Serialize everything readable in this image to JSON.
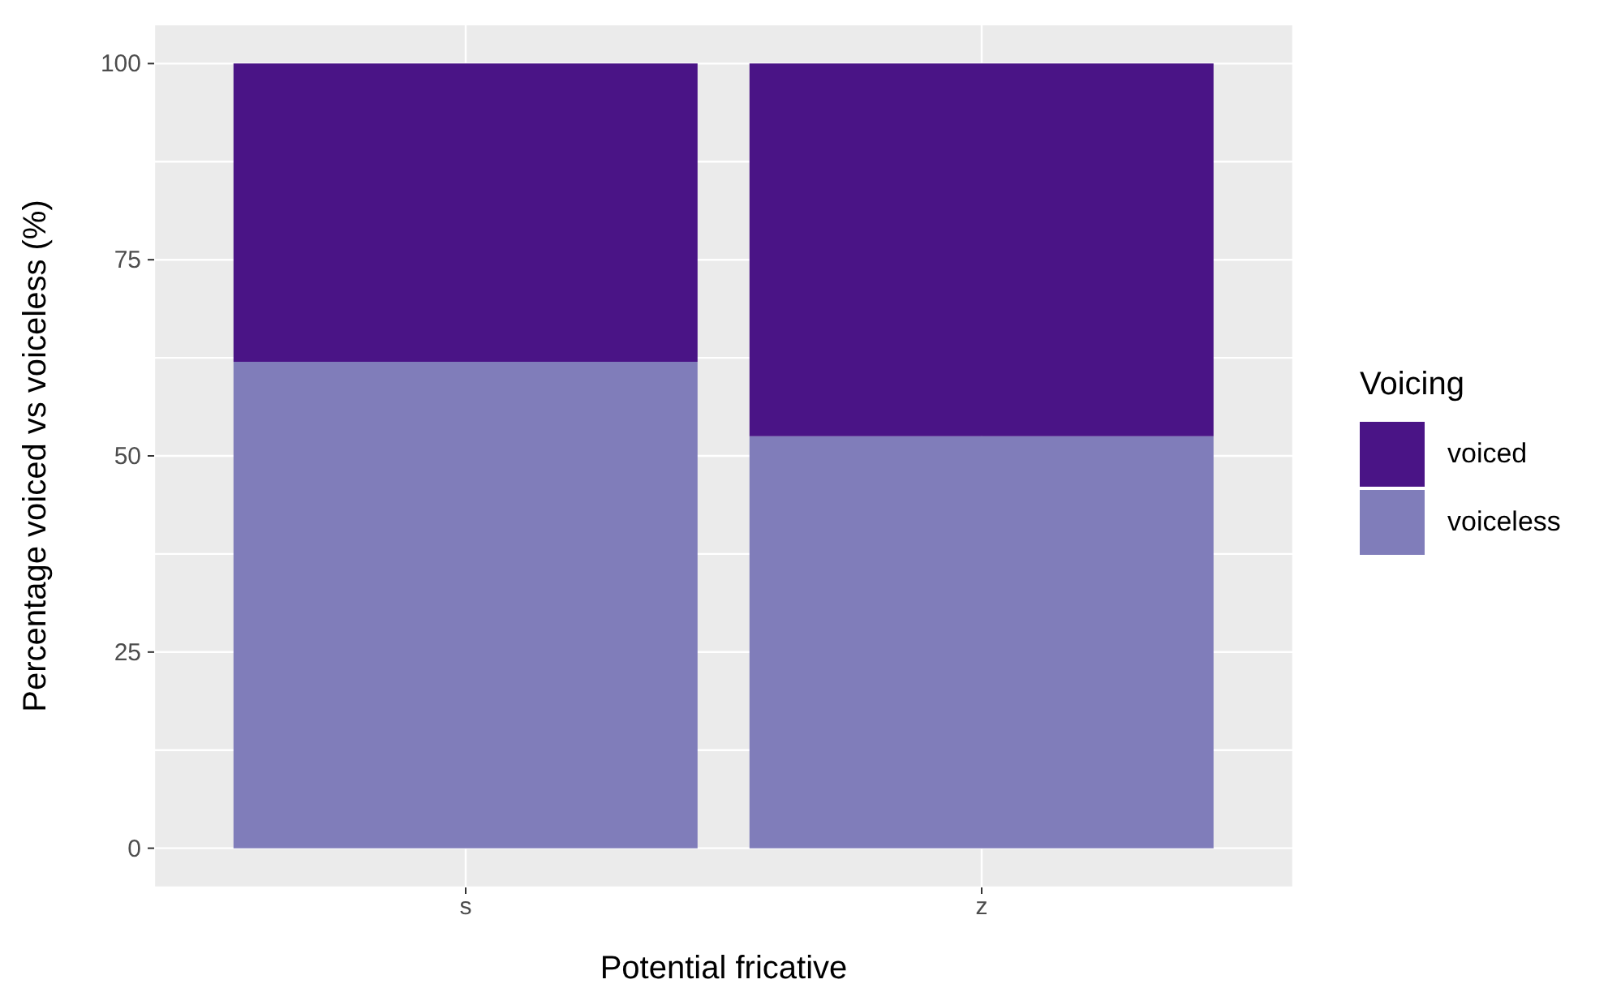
{
  "chart_data": {
    "type": "bar",
    "xlabel": "Potential fricative",
    "ylabel": "Percentage voiced vs voiceless (%)",
    "legend_title": "Voicing",
    "categories": [
      "s",
      "z"
    ],
    "series": [
      {
        "name": "voiceless",
        "color": "#807dba",
        "values": [
          62,
          52.5
        ]
      },
      {
        "name": "voiced",
        "color": "#4a1486",
        "values": [
          38,
          47.5
        ]
      }
    ],
    "stacked": true,
    "ylim": [
      -5,
      105
    ],
    "yticks": [
      0,
      {
        "value": 12.5,
        "label": null
      },
      25,
      {
        "value": 37.5,
        "label": null
      },
      50,
      {
        "value": 62.5,
        "label": null
      },
      75,
      {
        "value": 87.5,
        "label": null
      },
      100
    ],
    "grid": true,
    "legend": "right"
  }
}
